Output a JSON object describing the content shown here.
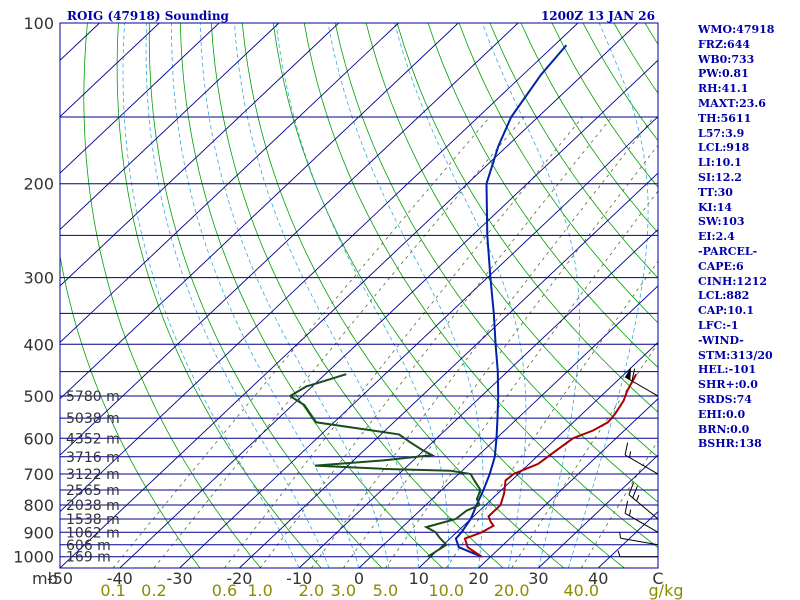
{
  "header": {
    "station": "ROIG (47918) Sounding",
    "time": "1200Z 13 JAN 26"
  },
  "colors": {
    "frame": "#0000a0",
    "isobar": "#00008b",
    "isotherm": "#00008b",
    "dry_adiabat": "#00a000",
    "moist_adiabat": "#33aadd",
    "mixing_ratio": "#556b2f",
    "temperature": "#0022aa",
    "dewpoint": "#1b4d1b",
    "parcel": "#aa0000",
    "text": "#0000aa",
    "mixing_label": "#8b8b00",
    "axis_text": "#333333",
    "wind": "#000000"
  },
  "side_panel": [
    "WMO:47918",
    "FRZ:644",
    "WB0:733",
    "PW:0.81",
    "RH:41.1",
    "MAXT:23.6",
    "TH:5611",
    "L57:3.9",
    "LCL:918",
    "LI:10.1",
    "SI:12.2",
    "TT:30",
    "KI:14",
    "SW:103",
    "EI:2.4",
    "-PARCEL-",
    "CAPE:6",
    "CINH:1212",
    "LCL:882",
    "CAP:10.1",
    "LFC:-1",
    "-WIND-",
    "STM:313/20",
    "HEL:-101",
    "SHR+:0.0",
    "SRDS:74",
    "EHI:0.0",
    "BRN:0.0",
    "BSHR:138"
  ],
  "chart_data": {
    "type": "line",
    "chart_kind": "skew-T log-P sounding",
    "y_scale": "log",
    "ylim": [
      1050,
      100
    ],
    "xlim": [
      -50,
      50
    ],
    "y_tick_labels": [
      "100",
      "200",
      "300",
      "400",
      "500",
      "600",
      "700",
      "800",
      "900",
      "1000"
    ],
    "y_tick_values": [
      100,
      200,
      300,
      400,
      500,
      600,
      700,
      800,
      900,
      1000
    ],
    "x_tick_labels": [
      "-50",
      "-40",
      "-30",
      "-20",
      "-10",
      "0",
      "10",
      "20",
      "30",
      "40",
      "C"
    ],
    "x_tick_values": [
      -50,
      -40,
      -30,
      -20,
      -10,
      0,
      10,
      20,
      30,
      40
    ],
    "ylabel": "mb",
    "mixing_ratio_labels": [
      "0.1",
      "0.2",
      "0.6",
      "1.0",
      "2.0",
      "3.0",
      "5.0",
      "10.0",
      "20.0",
      "40.0",
      "g/kg"
    ],
    "mixing_ratio_values": [
      0.1,
      0.2,
      0.6,
      1.0,
      2.0,
      3.0,
      5.0,
      10.0,
      20.0,
      40.0
    ],
    "height_labels": [
      {
        "p": 1000,
        "label": "169 m"
      },
      {
        "p": 950,
        "label": "606 m"
      },
      {
        "p": 900,
        "label": "1062 m"
      },
      {
        "p": 850,
        "label": "1538 m"
      },
      {
        "p": 800,
        "label": "2038 m"
      },
      {
        "p": 750,
        "label": "2565 m"
      },
      {
        "p": 700,
        "label": "3122 m"
      },
      {
        "p": 650,
        "label": "3716 m"
      },
      {
        "p": 600,
        "label": "4352 m"
      },
      {
        "p": 550,
        "label": "5038 m"
      },
      {
        "p": 500,
        "label": "5780 m"
      }
    ],
    "series": [
      {
        "key": "temperature",
        "points": [
          [
            1000,
            18.5
          ],
          [
            960,
            13
          ],
          [
            925,
            11
          ],
          [
            900,
            10.8
          ],
          [
            850,
            10.0
          ],
          [
            800,
            8.5
          ],
          [
            750,
            7.0
          ],
          [
            700,
            5.2
          ],
          [
            650,
            3.0
          ],
          [
            600,
            0.0
          ],
          [
            550,
            -3.4
          ],
          [
            500,
            -7.2
          ],
          [
            450,
            -11.6
          ],
          [
            400,
            -16.8
          ],
          [
            350,
            -22.6
          ],
          [
            300,
            -29.5
          ],
          [
            250,
            -37.5
          ],
          [
            200,
            -46.8
          ],
          [
            170,
            -51.5
          ],
          [
            150,
            -54.5
          ],
          [
            125,
            -57.0
          ],
          [
            110,
            -58.0
          ]
        ]
      },
      {
        "key": "dewpoint",
        "points": [
          [
            1000,
            9.5
          ],
          [
            975,
            10.0
          ],
          [
            950,
            10.5
          ],
          [
            920,
            8.0
          ],
          [
            900,
            6.5
          ],
          [
            880,
            4.0
          ],
          [
            850,
            7.5
          ],
          [
            820,
            7.8
          ],
          [
            800,
            9.0
          ],
          [
            780,
            7.5
          ],
          [
            750,
            6.5
          ],
          [
            720,
            3.8
          ],
          [
            700,
            2.0
          ],
          [
            690,
            -2.0
          ],
          [
            685,
            -13
          ],
          [
            675,
            -25.5
          ],
          [
            660,
            -15
          ],
          [
            645,
            -7.8
          ],
          [
            630,
            -10.5
          ],
          [
            610,
            -13.8
          ],
          [
            590,
            -17.0
          ],
          [
            560,
            -33.0
          ],
          [
            520,
            -38.0
          ],
          [
            500,
            -42.0
          ],
          [
            480,
            -41.0
          ],
          [
            455,
            -36.5
          ]
        ]
      },
      {
        "key": "parcel",
        "points": [
          [
            1000,
            18.5
          ],
          [
            960,
            14.5
          ],
          [
            925,
            12.5
          ],
          [
            900,
            14.2
          ],
          [
            875,
            15.0
          ],
          [
            860,
            13.8
          ],
          [
            840,
            12.5
          ],
          [
            800,
            12.5
          ],
          [
            760,
            11.0
          ],
          [
            720,
            9.0
          ],
          [
            700,
            9.2
          ],
          [
            670,
            11.5
          ],
          [
            640,
            12.0
          ],
          [
            600,
            12.8
          ],
          [
            580,
            14.8
          ],
          [
            560,
            15.8
          ],
          [
            540,
            15.5
          ],
          [
            510,
            14.6
          ],
          [
            490,
            13.5
          ],
          [
            455,
            12.0
          ]
        ]
      }
    ],
    "winds": [
      {
        "p": 1000,
        "dir": 270,
        "speed": 5
      },
      {
        "p": 950,
        "dir": 280,
        "speed": 5
      },
      {
        "p": 900,
        "dir": 300,
        "speed": 15
      },
      {
        "p": 850,
        "dir": 310,
        "speed": 25
      },
      {
        "p": 700,
        "dir": 300,
        "speed": 15
      },
      {
        "p": 500,
        "dir": 300,
        "speed": 60
      }
    ]
  }
}
